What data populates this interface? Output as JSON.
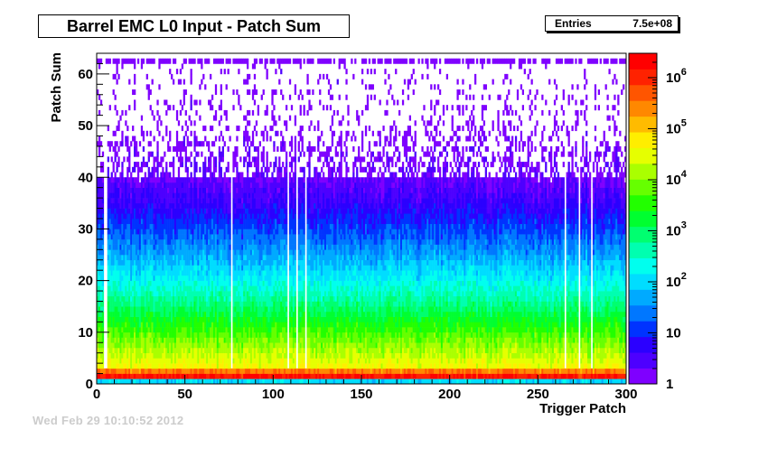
{
  "chart_data": {
    "type": "heatmap",
    "title": "Barrel EMC L0 Input - Patch Sum",
    "xlabel": "Trigger Patch",
    "ylabel": "Patch Sum",
    "xlim": [
      0,
      300
    ],
    "ylim": [
      0,
      64
    ],
    "x_ticks": [
      "0",
      "50",
      "100",
      "150",
      "200",
      "250",
      "300"
    ],
    "y_ticks": [
      "0",
      "10",
      "20",
      "30",
      "40",
      "50",
      "60"
    ],
    "z_scale": "log",
    "z_range": [
      1,
      3000000
    ],
    "z_ticks": [
      {
        "value": 1,
        "label": "1"
      },
      {
        "value": 10,
        "label": "10"
      },
      {
        "value": 100,
        "label": "10",
        "exp": "2"
      },
      {
        "value": 1000,
        "label": "10",
        "exp": "3"
      },
      {
        "value": 10000,
        "label": "10",
        "exp": "4"
      },
      {
        "value": 100000,
        "label": "10",
        "exp": "5"
      },
      {
        "value": 1000000,
        "label": "10",
        "exp": "6"
      }
    ],
    "stats": {
      "entries_label": "Entries",
      "entries_value": "7.5e+08"
    },
    "profile": {
      "description_rows": [
        {
          "y": 0,
          "z": 100
        },
        {
          "y": 1,
          "z": 1500000
        },
        {
          "y": 2,
          "z": 300000
        },
        {
          "y": 3,
          "z": 40000
        },
        {
          "y": 5,
          "z": 20000
        },
        {
          "y": 8,
          "z": 8000
        },
        {
          "y": 12,
          "z": 2000
        },
        {
          "y": 16,
          "z": 500
        },
        {
          "y": 20,
          "z": 150
        },
        {
          "y": 25,
          "z": 40
        },
        {
          "y": 30,
          "z": 12
        },
        {
          "y": 35,
          "z": 4
        },
        {
          "y": 40,
          "z": 1.8
        },
        {
          "y": 50,
          "z": 1
        },
        {
          "y": 62,
          "z": 1
        }
      ],
      "dead_patches": [
        4,
        5,
        76,
        108,
        113,
        118,
        265,
        273,
        280
      ]
    },
    "palette": [
      "#7f00ff",
      "#4d00ff",
      "#2b00ff",
      "#0033ff",
      "#0077ff",
      "#00aaff",
      "#00ddff",
      "#00ffee",
      "#00ffb0",
      "#00ff70",
      "#00ff30",
      "#22ff00",
      "#66ff00",
      "#aaff00",
      "#e6ff00",
      "#ffee00",
      "#ffbb00",
      "#ff8800",
      "#ff5500",
      "#ff2200",
      "#ff0000"
    ]
  },
  "date_stamp": "Wed Feb 29 10:10:52 2012"
}
